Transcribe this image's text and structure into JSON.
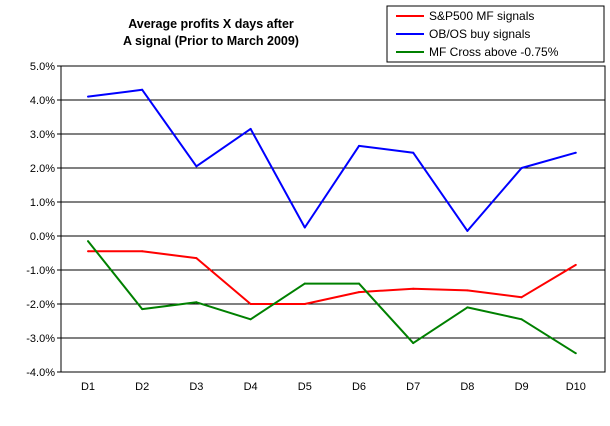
{
  "chart_data": {
    "type": "line",
    "title_lines": [
      "Average profits X days after",
      "A signal (Prior to March 2009)"
    ],
    "categories": [
      "D1",
      "D2",
      "D3",
      "D4",
      "D5",
      "D6",
      "D7",
      "D8",
      "D9",
      "D10"
    ],
    "ylim": [
      -4.0,
      5.0
    ],
    "yticks": [
      5.0,
      4.0,
      3.0,
      2.0,
      1.0,
      0.0,
      -1.0,
      -2.0,
      -3.0,
      -4.0
    ],
    "ytick_labels": [
      "5.0%",
      "4.0%",
      "3.0%",
      "2.0%",
      "1.0%",
      "0.0%",
      "-1.0%",
      "-2.0%",
      "-3.0%",
      "-4.0%"
    ],
    "grid": true,
    "legend_position": "top-right",
    "series": [
      {
        "name": "S&P500 MF signals",
        "color": "#ff0000",
        "values": [
          -0.45,
          -0.45,
          -0.65,
          -2.0,
          -2.0,
          -1.65,
          -1.55,
          -1.6,
          -1.8,
          -0.85
        ]
      },
      {
        "name": "OB/OS buy signals",
        "color": "#0000ff",
        "values": [
          4.1,
          4.3,
          2.05,
          3.15,
          0.25,
          2.65,
          2.45,
          0.15,
          2.0,
          2.45
        ]
      },
      {
        "name": "MF Cross above -0.75%",
        "color": "#008000",
        "values": [
          -0.15,
          -2.15,
          -1.95,
          -2.45,
          -1.4,
          -1.4,
          -3.15,
          -2.1,
          -2.45,
          -3.45
        ]
      }
    ]
  }
}
